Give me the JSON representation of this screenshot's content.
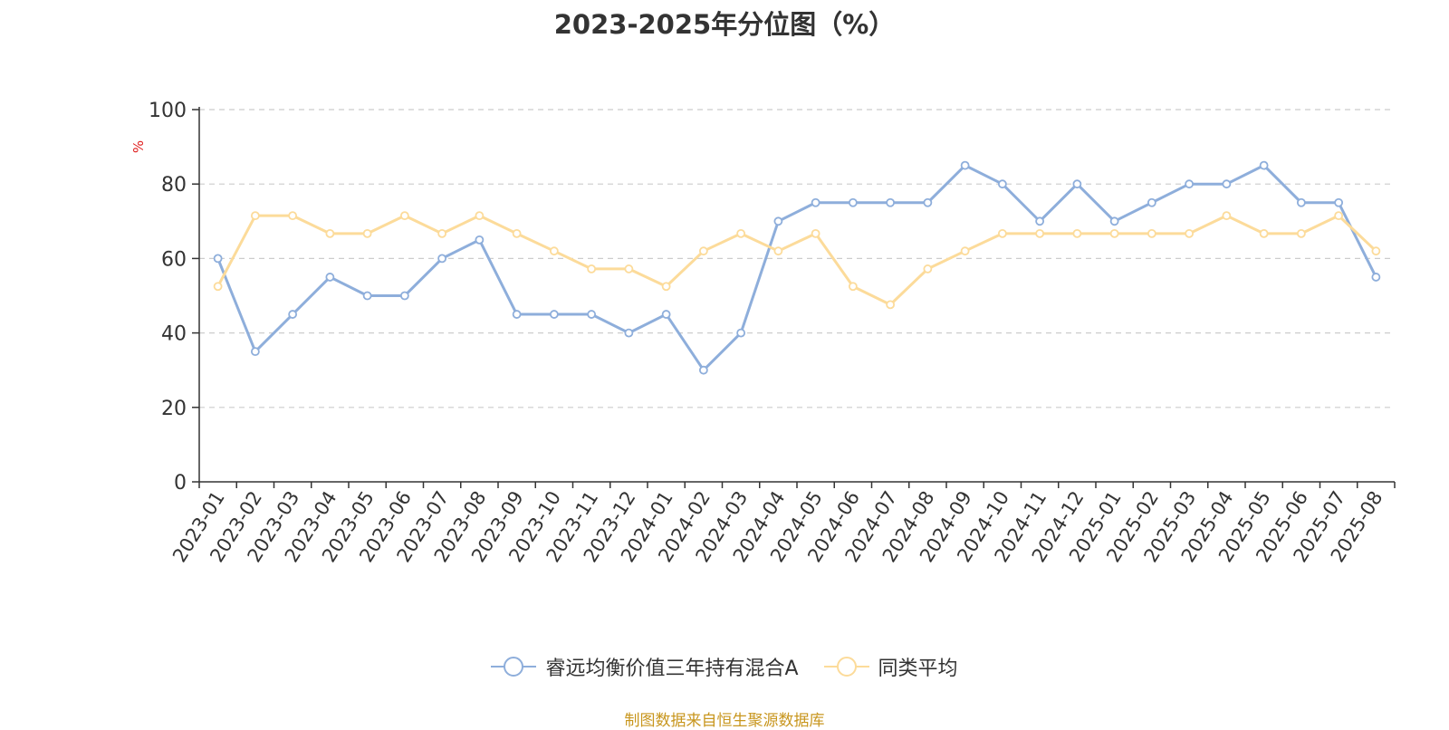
{
  "title": "2023-2025年分位图（%）",
  "unit_label": "%",
  "source": "制图数据来自恒生聚源数据库",
  "colors": {
    "series_a": "#8eaedb",
    "series_b": "#fcdb9a",
    "grid": "#cccccc",
    "axis": "#333333",
    "unit": "#e02020",
    "source": "#c8961e"
  },
  "chart_data": {
    "type": "line",
    "title": "2023-2025年分位图（%）",
    "ylabel": "%",
    "ylim": [
      0,
      100
    ],
    "yticks": [
      0,
      20,
      40,
      60,
      80,
      100
    ],
    "grid": true,
    "legend_position": "bottom-center",
    "categories": [
      "2023-01",
      "2023-02",
      "2023-03",
      "2023-04",
      "2023-05",
      "2023-06",
      "2023-07",
      "2023-08",
      "2023-09",
      "2023-10",
      "2023-11",
      "2023-12",
      "2024-01",
      "2024-02",
      "2024-03",
      "2024-04",
      "2024-05",
      "2024-06",
      "2024-07",
      "2024-08",
      "2024-09",
      "2024-10",
      "2024-11",
      "2024-12",
      "2025-01",
      "2025-02",
      "2025-03",
      "2025-04",
      "2025-05",
      "2025-06",
      "2025-07",
      "2025-08"
    ],
    "series": [
      {
        "name": "睿远均衡价值三年持有混合A",
        "color": "#8eaedb",
        "values": [
          60,
          35,
          45,
          55,
          50,
          50,
          60,
          65,
          45,
          45,
          45,
          40,
          45,
          30,
          40,
          70,
          75,
          75,
          75,
          75,
          85,
          80,
          70,
          80,
          70,
          75,
          80,
          80,
          85,
          75,
          75,
          55
        ]
      },
      {
        "name": "同类平均",
        "color": "#fcdb9a",
        "values": [
          52.5,
          71.5,
          71.5,
          66.7,
          66.7,
          71.5,
          66.7,
          71.5,
          66.7,
          62,
          57.2,
          57.2,
          52.5,
          62,
          66.7,
          62,
          66.7,
          52.5,
          47.6,
          57.2,
          62,
          66.7,
          66.7,
          66.7,
          66.7,
          66.7,
          66.7,
          71.5,
          66.7,
          66.7,
          71.5,
          62
        ]
      }
    ]
  }
}
